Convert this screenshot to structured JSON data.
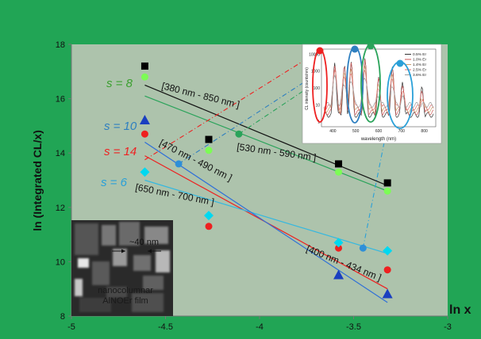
{
  "chart_data": {
    "type": "scatter",
    "xlabel": "ln x",
    "ylabel": "ln (Integrated  CL/x)",
    "xlim": [
      -5,
      -3
    ],
    "ylim": [
      8,
      18
    ],
    "xticks": [
      "-5",
      "-4.5",
      "-4",
      "-3.5",
      "-3"
    ],
    "yticks": [
      "8",
      "10",
      "12",
      "14",
      "16",
      "18"
    ],
    "grid": false,
    "series": [
      {
        "name": "[380 nm - 850 nm ]",
        "marker": "square",
        "color": "#000000",
        "x": [
          -4.61,
          -4.27,
          -3.58,
          -3.32
        ],
        "y": [
          17.2,
          14.5,
          13.6,
          12.9
        ],
        "fit": {
          "x": [
            -4.61,
            -3.32
          ],
          "y": [
            16.5,
            12.8
          ]
        }
      },
      {
        "name": "[530 nm - 590 nm ]",
        "marker": "circle",
        "color": "#7CFC55",
        "x": [
          -4.61,
          -4.27,
          -3.58,
          -3.32
        ],
        "y": [
          16.8,
          14.1,
          13.3,
          12.6
        ],
        "fit": {
          "x": [
            -4.61,
            -3.32
          ],
          "y": [
            16.1,
            12.6
          ]
        }
      },
      {
        "name": "[470 nm - 490 nm ]",
        "marker": "circle",
        "color": "#ee2020",
        "x": [
          -4.61,
          -4.27,
          -3.58,
          -3.32
        ],
        "y": [
          14.7,
          11.3,
          10.5,
          9.7
        ],
        "fit": {
          "x": [
            -4.61,
            -3.32
          ],
          "y": [
            13.9,
            9.0
          ]
        }
      },
      {
        "name": "[650 nm - 700 nm ]",
        "marker": "diamond",
        "color": "#00d8f0",
        "x": [
          -4.61,
          -4.27,
          -3.58,
          -3.32
        ],
        "y": [
          13.3,
          11.7,
          10.7,
          10.4
        ],
        "fit": {
          "x": [
            -4.61,
            -3.32
          ],
          "y": [
            13.0,
            10.3
          ]
        }
      },
      {
        "name": "[400 nm - 434 nm ]",
        "marker": "triangle",
        "color": "#1a3fc0",
        "x": [
          -4.61,
          -3.58,
          -3.32
        ],
        "y": [
          15.2,
          9.5,
          8.8
        ],
        "fit": {
          "x": [
            -4.61,
            -3.32
          ],
          "y": [
            14.4,
            8.5
          ]
        }
      }
    ],
    "s_labels": [
      {
        "text": "s = 8",
        "color": "#3aa02e"
      },
      {
        "text": "s = 10",
        "color": "#2e7fc0"
      },
      {
        "text": "s = 14",
        "color": "#ee2222"
      },
      {
        "text": "s = 6",
        "color": "#2aa0d8"
      }
    ],
    "extra_markers": [
      {
        "marker": "circle",
        "color": "#2aa35a",
        "x": -4.11,
        "y": 14.7
      },
      {
        "marker": "circle",
        "color": "#2e8fd8",
        "x": -4.43,
        "y": 13.6
      },
      {
        "marker": "circle",
        "color": "#2e8fd8",
        "x": -3.45,
        "y": 10.5
      }
    ],
    "inset_spectrum": {
      "xlabel": "wavelength (nm)",
      "ylabel": "CL intensity (counts/nm)",
      "xticks": [
        "400",
        "500",
        "600",
        "700",
        "800"
      ],
      "yticks": [
        "1",
        "10",
        "100",
        "1000",
        "10000"
      ],
      "legend": [
        "0.5% Er",
        "1.0% Er",
        "1.4% Er",
        "2.5% Er",
        "3.6% Er"
      ],
      "legend_colors": [
        "#333333",
        "#cc5555",
        "#c8a070",
        "#e07070",
        "#9c9c9c"
      ]
    },
    "inset_image": {
      "scale": "~40 nm",
      "caption_line1": "nanocolumnar",
      "caption_line2": "AlNOEr film"
    }
  }
}
